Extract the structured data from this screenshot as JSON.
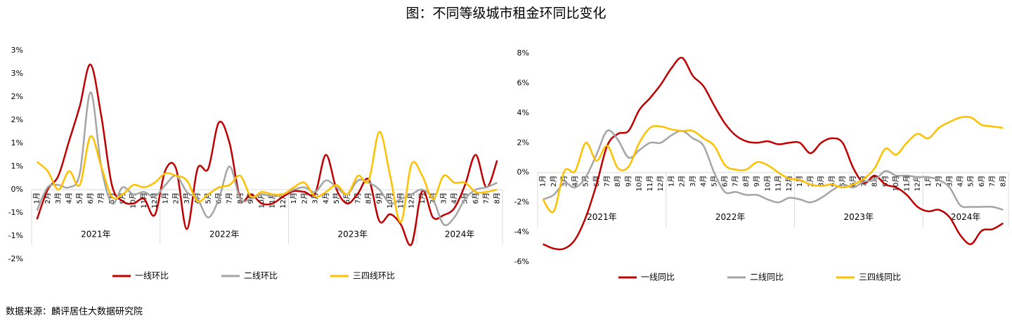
{
  "title": "图：不同等级城市租金环同比变化",
  "source": "数据来源：麟评居住大数据研究院",
  "chart_data": [
    {
      "type": "line",
      "groups": [
        {
          "name": "2021年",
          "categories": [
            "1月",
            "2月",
            "3月",
            "4月",
            "5月",
            "6月",
            "7月",
            "8月",
            "9月",
            "10月",
            "11月",
            "12月"
          ]
        },
        {
          "name": "2022年",
          "categories": [
            "1月",
            "2月",
            "3月",
            "4月",
            "5月",
            "6月",
            "7月",
            "8月",
            "9月",
            "10月",
            "11月",
            "12月"
          ]
        },
        {
          "name": "2023年",
          "categories": [
            "1月",
            "2月",
            "3月",
            "4月",
            "5月",
            "6月",
            "7月",
            "8月",
            "9月",
            "10月",
            "11月",
            "12月"
          ]
        },
        {
          "name": "2024年",
          "categories": [
            "1月",
            "2月",
            "3月",
            "4月",
            "5月",
            "6月",
            "7月",
            "8月"
          ]
        }
      ],
      "ylim": [
        -1.5,
        3
      ],
      "yticks": [
        {
          "value": -1.5,
          "label": "-2%"
        },
        {
          "value": -1,
          "label": "-1%"
        },
        {
          "value": -0.5,
          "label": "-1%"
        },
        {
          "value": 0,
          "label": "0%"
        },
        {
          "value": 0.5,
          "label": "1%"
        },
        {
          "value": 1,
          "label": "1%"
        },
        {
          "value": 1.5,
          "label": "2%"
        },
        {
          "value": 2,
          "label": "2%"
        },
        {
          "value": 2.5,
          "label": "3%"
        },
        {
          "value": 3,
          "label": "3%"
        }
      ],
      "series": [
        {
          "name": "一线环比",
          "color": "#c00000",
          "values": [
            -0.64,
            0.0,
            0.3,
            1.05,
            1.8,
            2.7,
            1.6,
            0.1,
            -0.25,
            -0.3,
            -0.2,
            -0.55,
            0.42,
            0.45,
            -0.85,
            0.45,
            0.45,
            1.45,
            1.0,
            -0.2,
            -0.1,
            -0.3,
            -0.3,
            -0.15,
            -0.03,
            -0.05,
            -0.08,
            0.75,
            0.0,
            -0.3,
            -0.08,
            0.22,
            -0.68,
            -0.53,
            -0.75,
            -1.18,
            -0.03,
            -0.6,
            -0.55,
            -0.4,
            0.1,
            0.75,
            0.05,
            0.63
          ]
        },
        {
          "name": "二线环比",
          "color": "#a5a5a5",
          "values": [
            -0.45,
            0.05,
            0.1,
            0.05,
            0.35,
            2.1,
            0.5,
            -0.3,
            0.05,
            -0.1,
            -0.05,
            -0.15,
            0.1,
            0.3,
            -0.05,
            -0.2,
            -0.6,
            -0.2,
            0.5,
            -0.2,
            -0.2,
            -0.1,
            -0.15,
            -0.1,
            0.0,
            0.05,
            -0.05,
            0.2,
            0.05,
            -0.1,
            0.2,
            0.15,
            0.0,
            -0.3,
            -0.2,
            -0.1,
            0.0,
            -0.2,
            -0.75,
            -0.6,
            -0.2,
            0.0,
            0.05,
            0.15
          ]
        },
        {
          "name": "三四线环比",
          "color": "#ffc000",
          "values": [
            0.6,
            0.4,
            0.0,
            0.4,
            0.1,
            1.15,
            0.5,
            -0.15,
            -0.1,
            0.1,
            0.05,
            0.15,
            0.35,
            0.3,
            0.2,
            -0.25,
            -0.1,
            0.05,
            0.1,
            0.3,
            -0.15,
            -0.05,
            -0.1,
            -0.1,
            0.05,
            0.15,
            -0.15,
            -0.05,
            0.1,
            -0.1,
            0.3,
            0.2,
            1.25,
            0.3,
            -0.7,
            0.55,
            0.3,
            -0.2,
            0.3,
            0.15,
            0.15,
            -0.05,
            -0.05,
            0.0
          ]
        }
      ]
    },
    {
      "type": "line",
      "groups": [
        {
          "name": "2021年",
          "categories": [
            "1月",
            "2月",
            "3月",
            "4月",
            "5月",
            "6月",
            "7月",
            "8月",
            "9月",
            "10月",
            "11月",
            "12月"
          ]
        },
        {
          "name": "2022年",
          "categories": [
            "1月",
            "2月",
            "3月",
            "4月",
            "5月",
            "6月",
            "7月",
            "8月",
            "9月",
            "10月",
            "11月",
            "12月"
          ]
        },
        {
          "name": "2023年",
          "categories": [
            "1月",
            "2月",
            "3月",
            "4月",
            "5月",
            "6月",
            "7月",
            "8月",
            "9月",
            "10月",
            "11月",
            "12月"
          ]
        },
        {
          "name": "2024年",
          "categories": [
            "1月",
            "2月",
            "3月",
            "4月",
            "5月",
            "6月",
            "7月",
            "8月"
          ]
        }
      ],
      "ylim": [
        -6,
        8
      ],
      "yticks": [
        {
          "value": -6,
          "label": "-6%"
        },
        {
          "value": -4,
          "label": "-4%"
        },
        {
          "value": -2,
          "label": "-2%"
        },
        {
          "value": 0,
          "label": "0%"
        },
        {
          "value": 2,
          "label": "2%"
        },
        {
          "value": 4,
          "label": "4%"
        },
        {
          "value": 6,
          "label": "6%"
        },
        {
          "value": 8,
          "label": "8%"
        }
      ],
      "series": [
        {
          "name": "一线同比",
          "color": "#c00000",
          "values": [
            -4.8,
            -5.1,
            -5.1,
            -4.5,
            -3.0,
            -0.8,
            1.8,
            2.6,
            2.8,
            4.2,
            5.0,
            5.9,
            7.0,
            7.7,
            6.5,
            5.8,
            4.5,
            3.3,
            2.5,
            2.1,
            2.0,
            2.1,
            1.9,
            2.0,
            2.0,
            1.3,
            2.0,
            2.3,
            2.0,
            0.3,
            -0.7,
            -0.2,
            -0.8,
            -1.0,
            -1.5,
            -2.3,
            -2.6,
            -2.5,
            -3.0,
            -4.2,
            -4.8,
            -3.9,
            -3.8,
            -3.4
          ]
        },
        {
          "name": "二线同比",
          "color": "#a5a5a5",
          "values": [
            -1.8,
            -1.5,
            -0.7,
            -1.0,
            -0.3,
            1.2,
            2.8,
            2.2,
            1.0,
            1.5,
            2.0,
            2.0,
            2.5,
            2.8,
            2.3,
            1.8,
            0.0,
            -1.3,
            -1.3,
            -1.5,
            -1.5,
            -1.8,
            -2.0,
            -1.7,
            -1.8,
            -2.0,
            -1.7,
            -1.2,
            -0.8,
            -1.0,
            -0.6,
            -0.5,
            0.1,
            -0.2,
            -0.2,
            -0.3,
            -0.3,
            -0.5,
            -1.0,
            -2.2,
            -2.3,
            -2.3,
            -2.3,
            -2.5
          ]
        },
        {
          "name": "三四线同比",
          "color": "#ffc000",
          "values": [
            -1.8,
            -2.6,
            0.1,
            0.1,
            2.0,
            0.8,
            1.8,
            0.3,
            0.4,
            2.0,
            3.0,
            3.1,
            2.9,
            2.8,
            2.8,
            2.3,
            1.8,
            0.5,
            0.2,
            0.2,
            0.7,
            0.5,
            0.0,
            -0.4,
            -0.5,
            -0.8,
            -0.9,
            -0.8,
            -1.0,
            -0.8,
            -0.4,
            0.3,
            1.6,
            1.2,
            2.0,
            2.6,
            2.3,
            3.0,
            3.4,
            3.7,
            3.7,
            3.2,
            3.1,
            3.0
          ]
        }
      ]
    }
  ]
}
